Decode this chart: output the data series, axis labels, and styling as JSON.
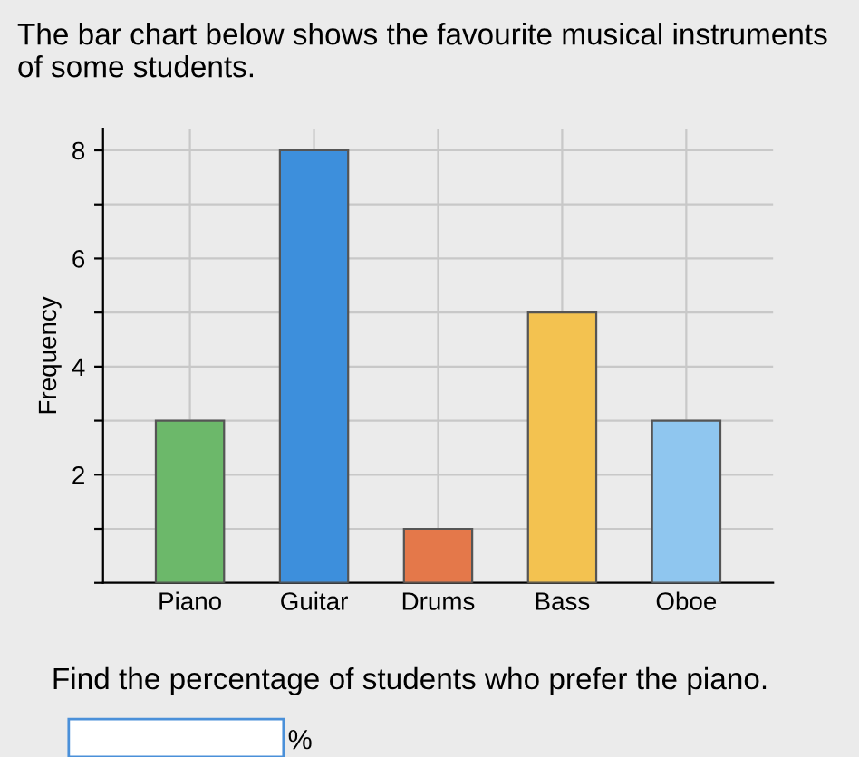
{
  "chart_data": {
    "type": "bar",
    "title": "The bar chart below shows the favourite musical instruments of some students.",
    "ylabel": "Frequency",
    "categories": [
      "Piano",
      "Guitar",
      "Drums",
      "Bass",
      "Oboe"
    ],
    "values": [
      3,
      8,
      1,
      5,
      3
    ],
    "colors": [
      "#6cb86a",
      "#3d8fdc",
      "#e4784a",
      "#f3c250",
      "#8fc6ef"
    ],
    "ylim": [
      0,
      8.4
    ],
    "yticks": [
      {
        "value": 0,
        "label": null
      },
      {
        "value": 1,
        "label": null
      },
      2,
      {
        "value": 3,
        "label": null
      },
      4,
      {
        "value": 5,
        "label": null
      },
      6,
      {
        "value": 7,
        "label": null
      },
      8
    ],
    "grid": true,
    "annotations": [
      "Find the percentage of students who prefer the piano.",
      "%"
    ]
  }
}
